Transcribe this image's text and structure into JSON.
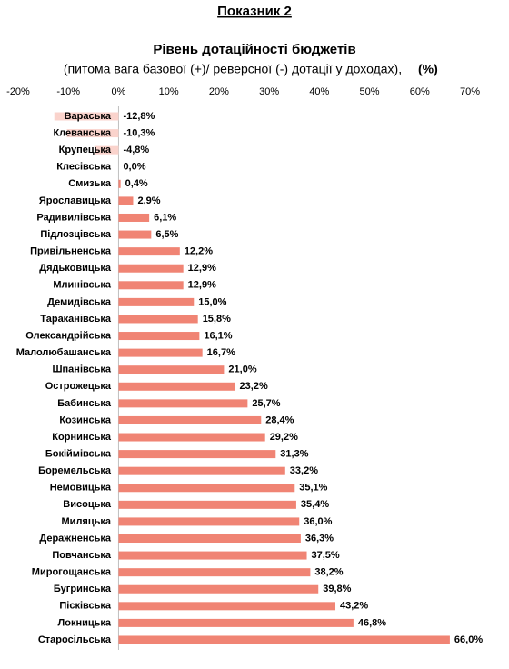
{
  "chart_data": {
    "type": "hbar",
    "title": "Показник 2",
    "subtitle": "Рівень дотаційності бюджетів",
    "note": "(питома вага базової (+)/ реверсної (-) дотації  у доходах),",
    "unit": "(%)",
    "categories": [
      "Вараська",
      "Клеванська",
      "Крупецька",
      "Клесівська",
      "Смизька",
      "Ярославицька",
      "Радивилівська",
      "Підлозцівська",
      "Привільненська",
      "Дядьковицька",
      "Млинівська",
      "Демидівська",
      "Тараканівська",
      "Олександрійська",
      "Малолюбашанська",
      "Шпанівська",
      "Острожецька",
      "Бабинська",
      "Козинська",
      "Корнинська",
      "Бокіймівська",
      "Боремельська",
      "Немовицька",
      "Висоцька",
      "Миляцька",
      "Деражненська",
      "Повчанська",
      "Мирогощанська",
      "Бугринська",
      "Пісківська",
      "Локницька",
      "Старосільська"
    ],
    "values": [
      -12.8,
      -10.3,
      -4.8,
      0.0,
      0.4,
      2.9,
      6.1,
      6.5,
      12.2,
      12.9,
      12.9,
      15.0,
      15.8,
      16.1,
      16.7,
      21.0,
      23.2,
      25.7,
      28.4,
      29.2,
      31.3,
      33.2,
      35.1,
      35.4,
      36.0,
      36.3,
      37.5,
      38.2,
      39.8,
      43.2,
      46.8,
      66.0
    ],
    "value_labels": [
      "-12,8%",
      "-10,3%",
      "-4,8%",
      "0,0%",
      "0,4%",
      "2,9%",
      "6,1%",
      "6,5%",
      "12,2%",
      "12,9%",
      "12,9%",
      "15,0%",
      "15,8%",
      "16,1%",
      "16,7%",
      "21,0%",
      "23,2%",
      "25,7%",
      "28,4%",
      "29,2%",
      "31,3%",
      "33,2%",
      "35,1%",
      "35,4%",
      "36,0%",
      "36,3%",
      "37,5%",
      "38,2%",
      "39,8%",
      "43,2%",
      "46,8%",
      "66,0%"
    ],
    "color": "#f08474",
    "negative_color": "#fad3cc",
    "xlim": [
      -20,
      70
    ],
    "xticks": [
      {
        "value": -20,
        "label": "-20%"
      },
      {
        "value": -10,
        "label": "-10%"
      },
      {
        "value": 0,
        "label": "0%"
      },
      {
        "value": 10,
        "label": "10%"
      },
      {
        "value": 20,
        "label": "20%"
      },
      {
        "value": 30,
        "label": "30%"
      },
      {
        "value": 40,
        "label": "40%"
      },
      {
        "value": 50,
        "label": "50%"
      },
      {
        "value": 60,
        "label": "60%"
      },
      {
        "value": 70,
        "label": "70%"
      }
    ]
  }
}
